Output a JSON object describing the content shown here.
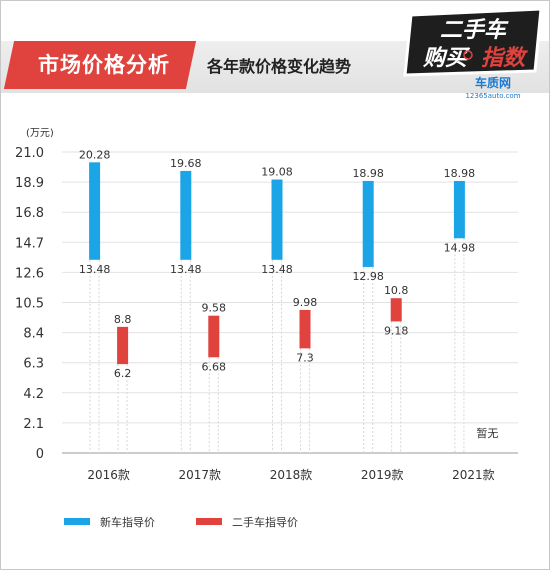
{
  "header": {
    "section_title": "市场价格分析",
    "subtitle": "各年款价格变化趋势"
  },
  "logo": {
    "line1": "二手车",
    "line2a": "购买",
    "line2b": "指数",
    "brand": "车质网",
    "domain": "12365auto.com"
  },
  "colors": {
    "accent_red": "#e0423d",
    "new_car_blue": "#1ca5e6",
    "used_car_red": "#e0423d",
    "header_dark": "#1e1e1e"
  },
  "chart_data": {
    "type": "bar",
    "unit_label": "(万元)",
    "categories": [
      "2016款",
      "2017款",
      "2018款",
      "2019款",
      "2021款"
    ],
    "ylim": [
      0,
      21.0
    ],
    "yticks": [
      "21.0",
      "18.9",
      "16.8",
      "14.7",
      "12.6",
      "10.5",
      "8.4",
      "6.3",
      "4.2",
      "2.1",
      "0"
    ],
    "grid": true,
    "legend_position": "bottom",
    "series": [
      {
        "name": "新车指导价",
        "color": "#1ca5e6",
        "ranges": [
          {
            "low": 13.48,
            "high": 20.28,
            "low_label": "13.48",
            "high_label": "20.28"
          },
          {
            "low": 13.48,
            "high": 19.68,
            "low_label": "13.48",
            "high_label": "19.68"
          },
          {
            "low": 13.48,
            "high": 19.08,
            "low_label": "13.48",
            "high_label": "19.08"
          },
          {
            "low": 12.98,
            "high": 18.98,
            "low_label": "12.98",
            "high_label": "18.98"
          },
          {
            "low": 14.98,
            "high": 18.98,
            "low_label": "14.98",
            "high_label": "18.98"
          }
        ]
      },
      {
        "name": "二手车指导价",
        "color": "#e0423d",
        "ranges": [
          {
            "low": 6.2,
            "high": 8.8,
            "low_label": "6.2",
            "high_label": "8.8"
          },
          {
            "low": 6.68,
            "high": 9.58,
            "low_label": "6.68",
            "high_label": "9.58"
          },
          {
            "low": 7.3,
            "high": 9.98,
            "low_label": "7.3",
            "high_label": "9.98"
          },
          {
            "low": 9.18,
            "high": 10.8,
            "low_label": "9.18",
            "high_label": "10.8"
          },
          null
        ]
      }
    ],
    "annotations": [
      {
        "category": "2021款",
        "series": "二手车指导价",
        "text": "暂无"
      }
    ]
  }
}
